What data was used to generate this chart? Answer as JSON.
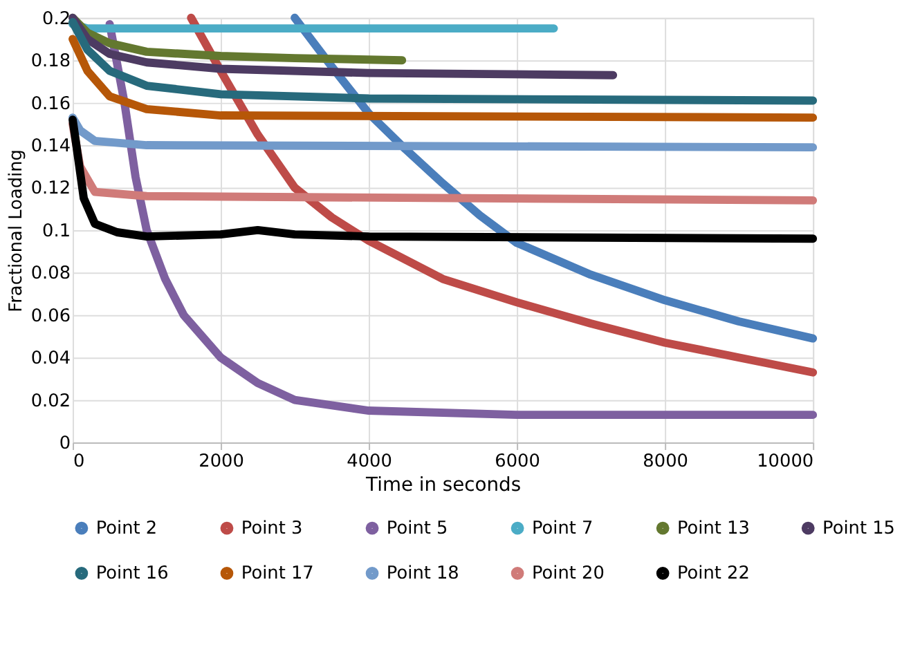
{
  "chart_data": {
    "type": "line",
    "xlabel": "Time in seconds",
    "ylabel": "Fractional Loading",
    "xlim": [
      0,
      10000
    ],
    "xticks": [
      0,
      2000,
      4000,
      6000,
      8000,
      10000
    ],
    "ylim": [
      0,
      0.2
    ],
    "yticks": [
      0,
      0.02,
      0.04,
      0.06,
      0.08,
      0.1,
      0.12,
      0.14,
      0.16,
      0.18,
      0.2
    ],
    "grid": true,
    "legend": "bottom",
    "marker": "none",
    "line_style": "solid",
    "series": [
      {
        "name": "Point 2",
        "color": "#4a7ebb",
        "x": [
          3000,
          3500,
          4000,
          4500,
          5000,
          5500,
          6000,
          7000,
          8000,
          9000,
          10000
        ],
        "values": [
          0.2,
          0.177,
          0.155,
          0.138,
          0.122,
          0.107,
          0.094,
          0.079,
          0.067,
          0.057,
          0.049
        ]
      },
      {
        "name": "Point 3",
        "color": "#be4b48",
        "x": [
          1600,
          2000,
          2500,
          3000,
          3500,
          4000,
          5000,
          6000,
          7000,
          8000,
          9000,
          10000
        ],
        "values": [
          0.2,
          0.175,
          0.145,
          0.12,
          0.106,
          0.095,
          0.077,
          0.066,
          0.056,
          0.047,
          0.04,
          0.033
        ]
      },
      {
        "name": "Point 5",
        "color": "#7e60a0",
        "x": [
          500,
          700,
          850,
          1000,
          1250,
          1500,
          2000,
          2500,
          3000,
          4000,
          6000,
          10000
        ],
        "values": [
          0.197,
          0.16,
          0.125,
          0.1,
          0.077,
          0.06,
          0.04,
          0.028,
          0.02,
          0.015,
          0.013,
          0.013
        ]
      },
      {
        "name": "Point 7",
        "color": "#4bacc6",
        "x": [
          0,
          200,
          1000,
          3000,
          6500
        ],
        "values": [
          0.197,
          0.195,
          0.195,
          0.195,
          0.195
        ]
      },
      {
        "name": "Point 13",
        "color": "#63782f",
        "x": [
          0,
          200,
          500,
          1000,
          2000,
          3000,
          4450
        ],
        "values": [
          0.2,
          0.193,
          0.188,
          0.184,
          0.182,
          0.181,
          0.18
        ]
      },
      {
        "name": "Point 15",
        "color": "#4d3b62",
        "x": [
          0,
          200,
          500,
          1000,
          2000,
          4000,
          7300
        ],
        "values": [
          0.2,
          0.19,
          0.183,
          0.179,
          0.176,
          0.174,
          0.173
        ]
      },
      {
        "name": "Point 16",
        "color": "#276a7c",
        "x": [
          0,
          200,
          500,
          1000,
          2000,
          4000,
          10000
        ],
        "values": [
          0.198,
          0.185,
          0.175,
          0.168,
          0.164,
          0.162,
          0.161
        ]
      },
      {
        "name": "Point 17",
        "color": "#b65708",
        "x": [
          0,
          200,
          500,
          1000,
          2000,
          10000
        ],
        "values": [
          0.19,
          0.175,
          0.163,
          0.157,
          0.154,
          0.153
        ]
      },
      {
        "name": "Point 18",
        "color": "#729aca",
        "x": [
          0,
          100,
          300,
          1000,
          10000
        ],
        "values": [
          0.153,
          0.147,
          0.142,
          0.14,
          0.139
        ]
      },
      {
        "name": "Point 20",
        "color": "#d07b79",
        "x": [
          0,
          100,
          300,
          1000,
          10000
        ],
        "values": [
          0.15,
          0.13,
          0.118,
          0.116,
          0.114
        ]
      },
      {
        "name": "Point 22",
        "color": "#000000",
        "x": [
          0,
          50,
          150,
          300,
          600,
          1000,
          2000,
          2500,
          3000,
          4000,
          10000
        ],
        "values": [
          0.152,
          0.14,
          0.115,
          0.103,
          0.099,
          0.097,
          0.098,
          0.1,
          0.098,
          0.097,
          0.096
        ]
      }
    ]
  }
}
